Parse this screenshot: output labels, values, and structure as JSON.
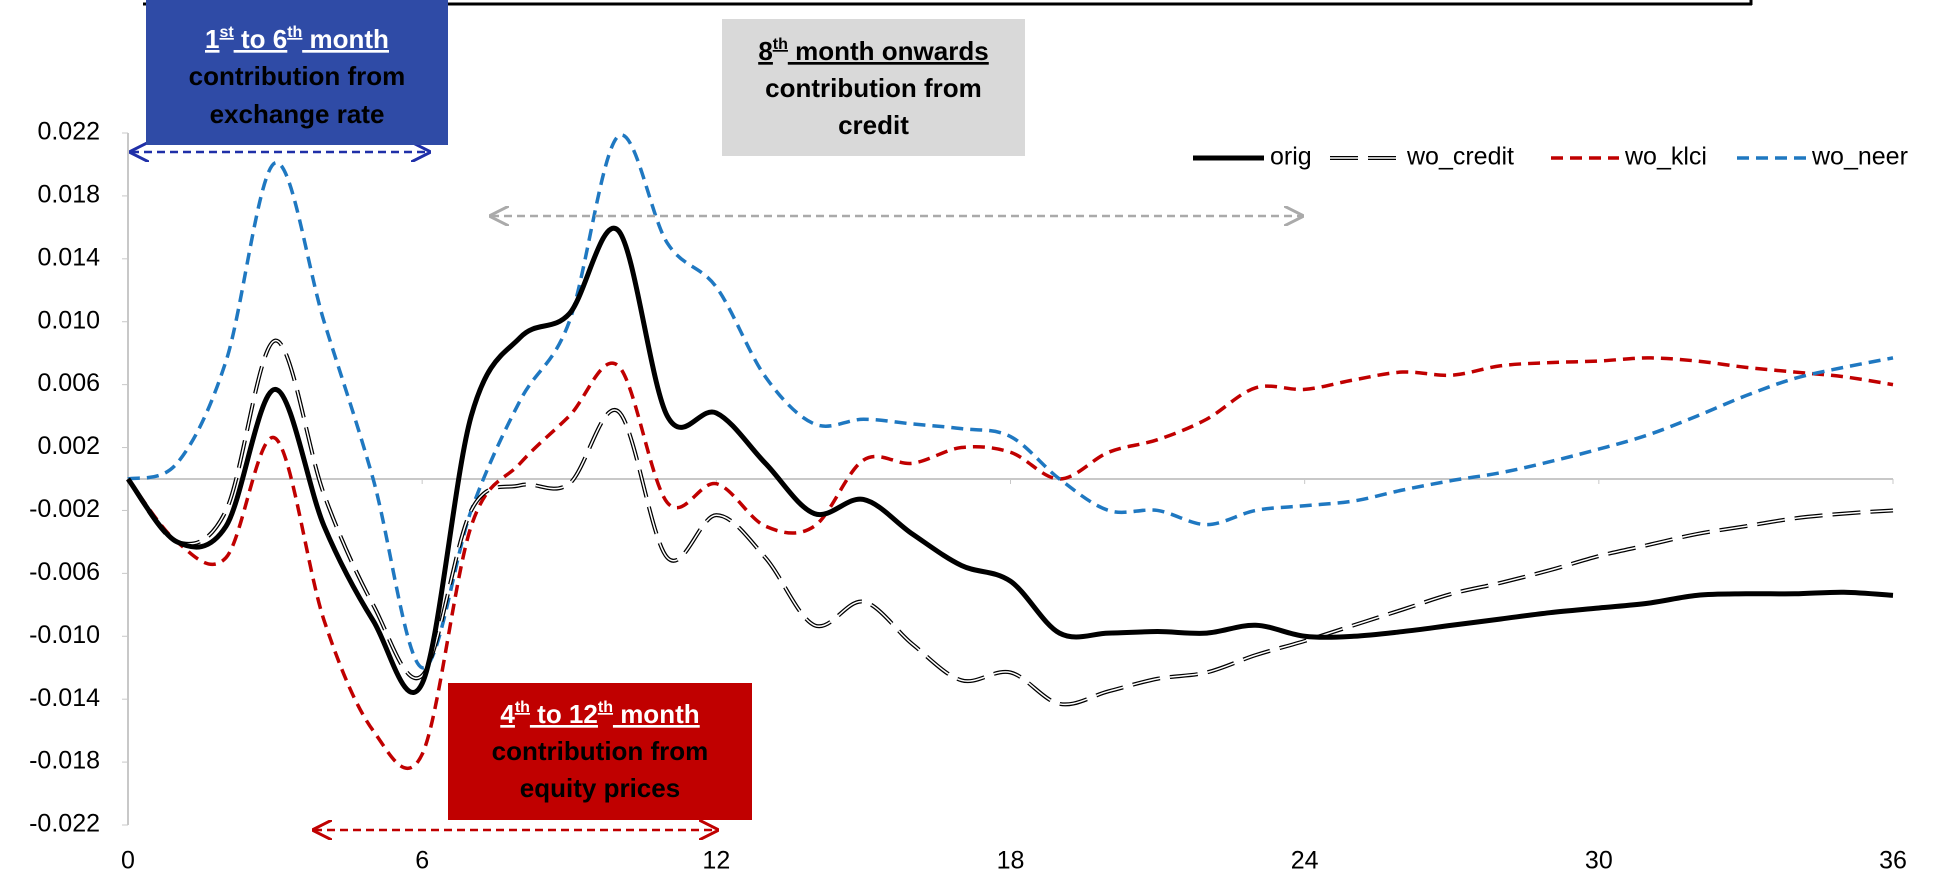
{
  "chart_data": {
    "type": "line",
    "x": [
      0,
      1,
      2,
      3,
      4,
      5,
      6,
      7,
      8,
      9,
      10,
      11,
      12,
      13,
      14,
      15,
      16,
      17,
      18,
      19,
      20,
      21,
      22,
      23,
      24,
      25,
      26,
      27,
      28,
      29,
      30,
      31,
      32,
      33,
      34,
      35,
      36
    ],
    "xlim": [
      0,
      36
    ],
    "xticks": [
      0,
      6,
      12,
      18,
      24,
      30,
      36
    ],
    "ylim": [
      -0.022,
      0.022
    ],
    "yticks": [
      -0.022,
      -0.018,
      -0.014,
      {
        "value": -0.01,
        "label": "-0.010"
      },
      -0.006,
      -0.002,
      0.002,
      0.006,
      {
        "value": 0.01,
        "label": "0.010"
      },
      0.014,
      0.018,
      0.022
    ],
    "legend": "top-right",
    "series": [
      {
        "name": "orig",
        "color": "#000000",
        "style": "solid",
        "values": [
          0,
          -0.004,
          -0.003,
          0.0057,
          -0.003,
          -0.009,
          -0.013,
          0.004,
          0.009,
          0.0105,
          0.0158,
          0.004,
          0.0042,
          0.001,
          -0.0022,
          -0.0013,
          -0.0035,
          -0.0055,
          -0.0065,
          -0.0098,
          -0.0098,
          -0.0097,
          -0.0098,
          -0.0093,
          -0.01,
          -0.01,
          -0.0097,
          -0.0093,
          -0.0089,
          -0.0085,
          -0.0082,
          -0.0079,
          -0.0074,
          -0.0073,
          -0.0073,
          -0.0072,
          -0.0074
        ]
      },
      {
        "name": "wo_credit",
        "color": "#000000",
        "style": "double-dash",
        "values": [
          0,
          -0.004,
          -0.002,
          0.0088,
          -0.001,
          -0.008,
          -0.0125,
          -0.002,
          -0.0004,
          -0.0003,
          0.0043,
          -0.005,
          -0.0023,
          -0.005,
          -0.0093,
          -0.0078,
          -0.0105,
          -0.0128,
          -0.0123,
          -0.0143,
          -0.0135,
          -0.0127,
          -0.0123,
          -0.0112,
          -0.0103,
          -0.0093,
          -0.0083,
          -0.0073,
          -0.0066,
          -0.0058,
          -0.0049,
          -0.0042,
          -0.0035,
          -0.003,
          -0.0025,
          -0.0022,
          -0.002
        ]
      },
      {
        "name": "wo_klci",
        "color": "#c00000",
        "style": "dash",
        "values": [
          0,
          -0.004,
          -0.005,
          0.0026,
          -0.009,
          -0.016,
          -0.0175,
          -0.003,
          0.001,
          0.004,
          0.0072,
          -0.0015,
          -0.0003,
          -0.003,
          -0.003,
          0.0012,
          0.001,
          0.002,
          0.0017,
          0,
          0.0017,
          0.0025,
          0.0038,
          0.0058,
          0.0057,
          0.0063,
          0.0068,
          0.0066,
          0.0072,
          0.0074,
          0.0075,
          0.0077,
          0.0075,
          0.0071,
          0.0068,
          0.0065,
          0.006
        ]
      },
      {
        "name": "wo_neer",
        "color": "#1f78c1",
        "style": "dash",
        "values": [
          0,
          0.001,
          0.0075,
          0.0201,
          0.01,
          0,
          -0.012,
          -0.002,
          0.005,
          0.01,
          0.0218,
          0.015,
          0.0122,
          0.0065,
          0.0035,
          0.0038,
          0.0035,
          0.0032,
          0.0027,
          0,
          -0.002,
          -0.002,
          -0.0029,
          -0.002,
          -0.0017,
          -0.0014,
          -0.0007,
          -0.0001,
          0.0004,
          0.0011,
          0.0019,
          0.0028,
          0.004,
          0.0053,
          0.0064,
          0.0071,
          0.0077
        ]
      }
    ],
    "annotations": [
      {
        "heading": [
          "1",
          "st",
          " to 6",
          "th",
          " month"
        ],
        "lines": [
          "contribution from",
          "exchange rate"
        ],
        "color": "#2f4ba6",
        "text_color": "#ffffff",
        "arrow_color": "#1f2fa8"
      },
      {
        "heading": [
          "8",
          "th",
          " month onwards"
        ],
        "lines": [
          "contribution from",
          "credit"
        ],
        "color": "#d9d9d9",
        "text_color": "#000000",
        "arrow_color": "#aaaaaa"
      },
      {
        "heading": [
          "4",
          "th",
          " to 12",
          "th",
          " month"
        ],
        "lines": [
          "contribution from",
          "equity prices"
        ],
        "color": "#c00000",
        "text_color": "#ffffff",
        "arrow_color": "#c00000"
      }
    ]
  }
}
